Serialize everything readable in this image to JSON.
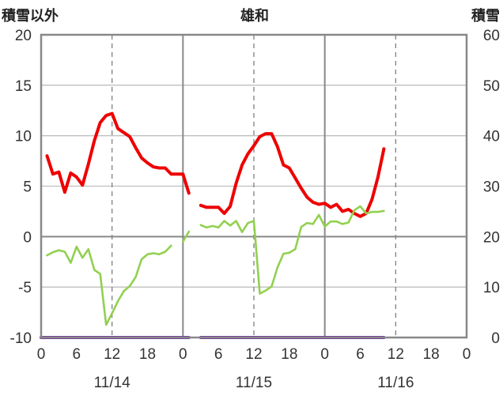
{
  "chart_data": {
    "type": "line",
    "title": "雄和",
    "left_axis_title": "積雪以外",
    "right_axis_title": "積雪",
    "ylim_left": [
      -10,
      20
    ],
    "yticks_left": [
      "20",
      "15",
      "10",
      "5",
      "0",
      "-5",
      "-10"
    ],
    "ylim_right": [
      0,
      60
    ],
    "yticks_right": [
      "60",
      "50",
      "40",
      "30",
      "20",
      "10",
      "0"
    ],
    "xlim_hours": [
      0,
      72
    ],
    "xticks": [
      "0",
      "6",
      "12",
      "18",
      "0",
      "6",
      "12",
      "18",
      "0",
      "6",
      "12",
      "18",
      "0"
    ],
    "dates": [
      "11/14",
      "11/15",
      "11/16"
    ],
    "colors": {
      "red": "#ee0000",
      "green": "#92d050",
      "purple": "#7030a0"
    },
    "series": [
      {
        "color": "red",
        "axis": "left",
        "points": [
          [
            1,
            8.0
          ],
          [
            2,
            6.2
          ],
          [
            3,
            6.4
          ],
          [
            4,
            4.4
          ],
          [
            5,
            6.3
          ],
          [
            6,
            5.9
          ],
          [
            7,
            5.1
          ],
          [
            8,
            7.2
          ],
          [
            9,
            9.5
          ],
          [
            10,
            11.3
          ],
          [
            11,
            12.0
          ],
          [
            12,
            12.2
          ],
          [
            13,
            10.7
          ],
          [
            14,
            10.3
          ],
          [
            15,
            9.9
          ],
          [
            16,
            8.8
          ],
          [
            17,
            7.8
          ],
          [
            18,
            7.3
          ],
          [
            19,
            6.9
          ],
          [
            20,
            6.8
          ],
          [
            21,
            6.8
          ],
          [
            22,
            6.2
          ],
          [
            23,
            6.2
          ],
          [
            24,
            6.2
          ],
          [
            25,
            4.3
          ],
          null,
          [
            27,
            3.1
          ],
          [
            28,
            2.9
          ],
          [
            29,
            2.9
          ],
          [
            30,
            2.9
          ],
          [
            31,
            2.3
          ],
          [
            32,
            3.0
          ],
          [
            33,
            5.3
          ],
          [
            34,
            7.1
          ],
          [
            35,
            8.2
          ],
          [
            36,
            9.0
          ],
          [
            37,
            9.9
          ],
          [
            38,
            10.2
          ],
          [
            39,
            10.2
          ],
          [
            40,
            8.9
          ],
          [
            41,
            7.1
          ],
          [
            42,
            6.8
          ],
          [
            43,
            5.8
          ],
          [
            44,
            4.8
          ],
          [
            45,
            3.9
          ],
          [
            46,
            3.4
          ],
          [
            47,
            3.2
          ],
          [
            48,
            3.3
          ],
          [
            49,
            2.9
          ],
          [
            50,
            3.2
          ],
          [
            51,
            2.5
          ],
          [
            52,
            2.7
          ],
          [
            53,
            2.3
          ],
          [
            54,
            2.0
          ],
          [
            55,
            2.3
          ],
          [
            56,
            3.7
          ],
          [
            57,
            5.9
          ],
          [
            58,
            8.7
          ]
        ]
      },
      {
        "color": "green",
        "axis": "right",
        "points": [
          [
            1,
            16.3
          ],
          [
            2,
            16.9
          ],
          [
            3,
            17.3
          ],
          [
            4,
            17.0
          ],
          [
            5,
            14.8
          ],
          [
            6,
            18.0
          ],
          [
            7,
            15.8
          ],
          [
            8,
            17.5
          ],
          [
            9,
            13.4
          ],
          [
            10,
            12.6
          ],
          [
            11,
            2.5
          ],
          [
            12,
            4.8
          ],
          [
            13,
            7.2
          ],
          [
            14,
            9.2
          ],
          [
            15,
            10.2
          ],
          [
            16,
            12.0
          ],
          [
            17,
            15.5
          ],
          [
            18,
            16.5
          ],
          [
            19,
            16.7
          ],
          [
            20,
            16.5
          ],
          [
            21,
            17.0
          ],
          [
            22,
            18.2
          ],
          null,
          [
            24,
            19.0
          ],
          [
            25,
            21.0
          ],
          null,
          [
            27,
            22.3
          ],
          [
            28,
            21.8
          ],
          [
            29,
            22.1
          ],
          [
            30,
            21.8
          ],
          [
            31,
            23.1
          ],
          [
            32,
            22.2
          ],
          [
            33,
            23.1
          ],
          [
            34,
            20.9
          ],
          [
            35,
            22.7
          ],
          [
            36,
            23.1
          ],
          [
            37,
            8.7
          ],
          [
            38,
            9.3
          ],
          [
            39,
            10.1
          ],
          [
            40,
            13.9
          ],
          [
            41,
            16.6
          ],
          [
            42,
            16.8
          ],
          [
            43,
            17.5
          ],
          [
            44,
            21.9
          ],
          [
            45,
            22.7
          ],
          [
            46,
            22.5
          ],
          [
            47,
            24.3
          ],
          [
            48,
            22.0
          ],
          [
            49,
            23.0
          ],
          [
            50,
            23.0
          ],
          [
            51,
            22.5
          ],
          [
            52,
            22.8
          ],
          [
            53,
            25.2
          ],
          [
            54,
            26.0
          ],
          [
            55,
            24.6
          ],
          [
            56,
            24.9
          ],
          [
            57,
            24.9
          ],
          [
            58,
            25.1
          ]
        ]
      },
      {
        "color": "purple",
        "axis": "right",
        "points": [
          [
            0,
            0
          ],
          [
            25,
            0
          ],
          null,
          [
            27,
            0
          ],
          [
            58,
            0
          ]
        ]
      }
    ]
  }
}
